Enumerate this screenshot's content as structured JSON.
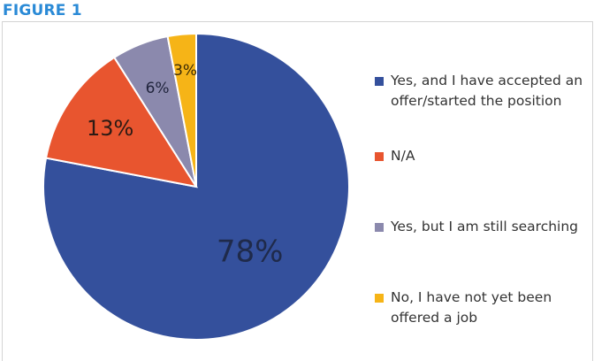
{
  "figure_label": "FIGURE 1",
  "chart_data": {
    "type": "pie",
    "slices": [
      {
        "label": "Yes, and I have accepted an offer/started the position",
        "value": 78,
        "display": "78%",
        "color": "#34509c"
      },
      {
        "label": "N/A",
        "value": 13,
        "display": "13%",
        "color": "#e8552f"
      },
      {
        "label": "Yes, but I am still searching",
        "value": 6,
        "display": "6%",
        "color": "#8b89ad"
      },
      {
        "label": "No, I have not yet been offered a job",
        "value": 3,
        "display": "3%",
        "color": "#f6b417"
      }
    ],
    "legend_position": "right",
    "start_angle": "12 o'clock",
    "direction": "clockwise"
  }
}
